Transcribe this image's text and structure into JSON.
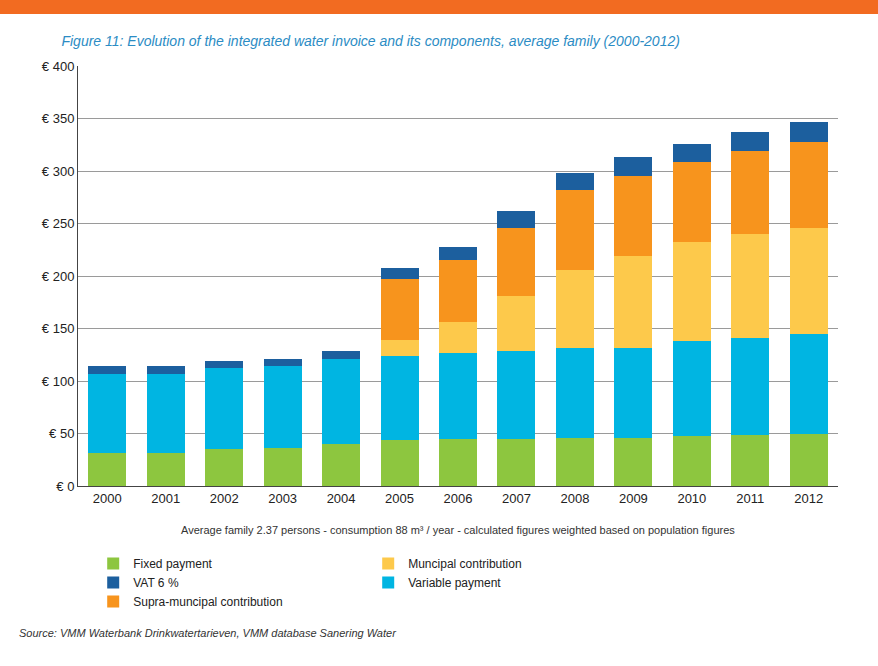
{
  "chart_data": {
    "type": "bar",
    "stacked": true,
    "title": "Figure 11: Evolution of the integrated water invoice and its components, average family (2000-2012)",
    "subtitle": "Average family 2.37 persons - consumption 88 m³ / year - calculated figures weighted based on population figures",
    "annotations": [
      "Source: VMM Waterbank Drinkwatertarieven, VMM database Sanering Water"
    ],
    "categories": [
      "2000",
      "2001",
      "2002",
      "2003",
      "2004",
      "2005",
      "2006",
      "2007",
      "2008",
      "2009",
      "2010",
      "2011",
      "2012"
    ],
    "series": [
      {
        "name": "Fixed payment",
        "color": "#8dc63f",
        "values": [
          31,
          31,
          35,
          36,
          40,
          44,
          45,
          45,
          46,
          46,
          48,
          49,
          50
        ]
      },
      {
        "name": "Variable payment",
        "color": "#00b5e2",
        "values": [
          76,
          76,
          77,
          78,
          81,
          80,
          82,
          84,
          85,
          85,
          90,
          92,
          95
        ]
      },
      {
        "name": "Muncipal contribution",
        "color": "#fdc94b",
        "values": [
          0,
          0,
          0,
          0,
          0,
          15,
          29,
          52,
          75,
          88,
          94,
          99,
          101
        ]
      },
      {
        "name": "Supra-muncipal contribution",
        "color": "#f7941d",
        "values": [
          0,
          0,
          0,
          0,
          0,
          58,
          59,
          65,
          76,
          76,
          77,
          79,
          82
        ]
      },
      {
        "name": "VAT 6 %",
        "color": "#1c5f9e",
        "values": [
          7,
          7,
          7,
          7,
          8,
          11,
          13,
          16,
          16,
          18,
          17,
          18,
          19
        ]
      }
    ],
    "ylim": [
      0,
      400
    ],
    "yticks": [
      {
        "value": 0,
        "label": "€ 0"
      },
      {
        "value": 50,
        "label": "€ 50"
      },
      {
        "value": 100,
        "label": "€ 100"
      },
      {
        "value": 150,
        "label": "€ 150"
      },
      {
        "value": 200,
        "label": "€ 200"
      },
      {
        "value": 250,
        "label": "€ 250"
      },
      {
        "value": 300,
        "label": "€ 300"
      },
      {
        "value": 350,
        "label": "€ 350"
      },
      {
        "value": 400,
        "label": "€ 400"
      }
    ],
    "grid": true,
    "legend": "bottom"
  }
}
